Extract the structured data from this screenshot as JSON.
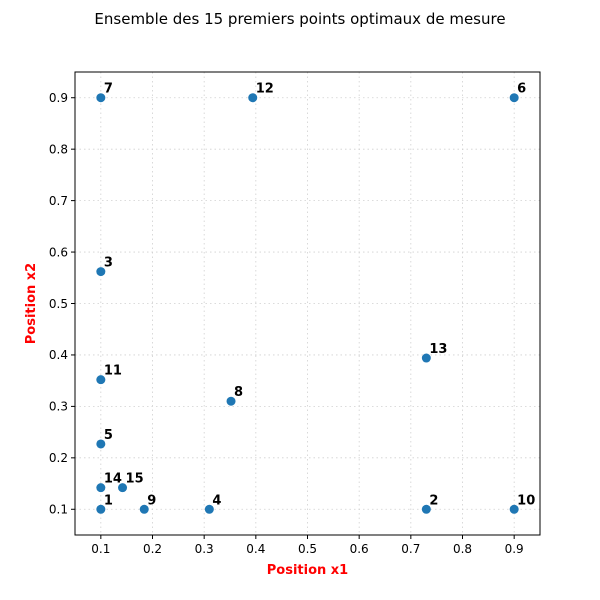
{
  "chart_data": {
    "type": "scatter",
    "title": "Ensemble des 15 premiers points optimaux de mesure",
    "xlabel": "Position x1",
    "ylabel": "Position x2",
    "label_color": "#ff0000",
    "point_color": "#1f77b4",
    "xlim": [
      0.05,
      0.95
    ],
    "ylim": [
      0.05,
      0.95
    ],
    "xticks": [
      "0.1",
      "0.2",
      "0.3",
      "0.4",
      "0.5",
      "0.6",
      "0.7",
      "0.8",
      "0.9"
    ],
    "yticks": [
      "0.1",
      "0.2",
      "0.3",
      "0.4",
      "0.5",
      "0.6",
      "0.7",
      "0.8",
      "0.9"
    ],
    "grid": true,
    "points": [
      {
        "label": "1",
        "x": 0.1,
        "y": 0.1
      },
      {
        "label": "2",
        "x": 0.73,
        "y": 0.1
      },
      {
        "label": "3",
        "x": 0.1,
        "y": 0.562
      },
      {
        "label": "4",
        "x": 0.31,
        "y": 0.1
      },
      {
        "label": "5",
        "x": 0.1,
        "y": 0.227
      },
      {
        "label": "6",
        "x": 0.9,
        "y": 0.9
      },
      {
        "label": "7",
        "x": 0.1,
        "y": 0.9
      },
      {
        "label": "8",
        "x": 0.352,
        "y": 0.31
      },
      {
        "label": "9",
        "x": 0.184,
        "y": 0.1
      },
      {
        "label": "10",
        "x": 0.9,
        "y": 0.1
      },
      {
        "label": "11",
        "x": 0.1,
        "y": 0.352
      },
      {
        "label": "12",
        "x": 0.394,
        "y": 0.9
      },
      {
        "label": "13",
        "x": 0.73,
        "y": 0.394
      },
      {
        "label": "14",
        "x": 0.1,
        "y": 0.142
      },
      {
        "label": "15",
        "x": 0.142,
        "y": 0.142
      }
    ]
  }
}
